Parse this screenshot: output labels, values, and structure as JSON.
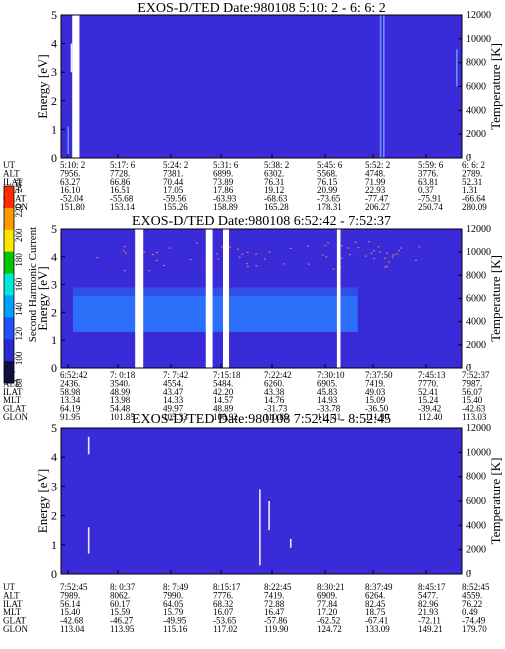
{
  "panels": [
    {
      "title": "EXOS-D/TED   Date:980108  5:10: 2 - 6: 6: 2",
      "ut": [
        "5:10: 2",
        "5:17: 6",
        "5:24: 2",
        "5:31: 6",
        "5:38: 2",
        "5:45: 6",
        "5:52: 2",
        "5:59: 6",
        "6: 6: 2"
      ],
      "alt": [
        "7956.",
        "7728.",
        "7381.",
        "6899.",
        "6302.",
        "5568.",
        "4748.",
        "3776.",
        "2789."
      ],
      "ilat": [
        "63.27",
        "66.86",
        "70.44",
        "73.89",
        "76.31",
        "76.15",
        "71.99",
        "63.81",
        "52.31"
      ],
      "mlt": [
        "16.10",
        "16.51",
        "17.05",
        "17.86",
        "19.12",
        "20.99",
        "22.93",
        "0.37",
        "1.31"
      ],
      "glat": [
        "-52.04",
        "-55.68",
        "-59.56",
        "-63.93",
        "-68.63",
        "-73.65",
        "-77.47",
        "-75.91",
        "-66.64"
      ],
      "glon": [
        "151.80",
        "153.14",
        "155.26",
        "158.89",
        "165.28",
        "178.31",
        "206.27",
        "250.74",
        "280.09"
      ]
    },
    {
      "title": "EXOS-D/TED   Date:980108  6:52:42 - 7:52:37",
      "ut": [
        "6:52:42",
        "7: 0:18",
        "7: 7:42",
        "7:15:18",
        "7:22:42",
        "7:30:10",
        "7:37:50",
        "7:45:13",
        "7:52:37"
      ],
      "alt": [
        "2436.",
        "3540.",
        "4554.",
        "5484.",
        "6260.",
        "6905.",
        "7419.",
        "7770.",
        "7987."
      ],
      "ilat": [
        "58.98",
        "48.99",
        "43.47",
        "42.20",
        "43.38",
        "45.83",
        "49.03",
        "52.41",
        "56.07"
      ],
      "mlt": [
        "13.34",
        "13.98",
        "14.33",
        "14.57",
        "14.76",
        "14.93",
        "15.09",
        "15.24",
        "15.40"
      ],
      "glat": [
        "64.19",
        "54.48",
        "49.97",
        "48.89",
        "-31.73",
        "-33.78",
        "-36.50",
        "-39.42",
        "-42.63"
      ],
      "glon": [
        "91.95",
        "101.85",
        "105.33",
        "106.92",
        "110.85",
        "111.41",
        "111.90",
        "112.40",
        "113.03"
      ]
    },
    {
      "title": "EXOS-D/TED   Date:980108  7:52:45 - 8:52:45",
      "ut": [
        "7:52:45",
        "8: 0:37",
        "8: 7:49",
        "8:15:17",
        "8:22:45",
        "8:30:21",
        "8:37:49",
        "8:45:17",
        "8:52:45"
      ],
      "alt": [
        "7989.",
        "8062.",
        "7990.",
        "7776.",
        "7419.",
        "6909.",
        "6264.",
        "5477.",
        "4559."
      ],
      "ilat": [
        "56.14",
        "60.17",
        "64.05",
        "68.32",
        "72.88",
        "77.84",
        "82.45",
        "82.96",
        "76.22"
      ],
      "mlt": [
        "15.40",
        "15.59",
        "15.79",
        "16.07",
        "16.47",
        "17.20",
        "18.75",
        "21.93",
        "0.49"
      ],
      "glat": [
        "-42.68",
        "-46.27",
        "-49.95",
        "-53.65",
        "-57.86",
        "-62.52",
        "-67.41",
        "-72.11",
        "-74.49"
      ],
      "glon": [
        "113.04",
        "113.95",
        "115.16",
        "117.02",
        "119.90",
        "124.72",
        "133.09",
        "149.21",
        "179.70"
      ]
    }
  ],
  "row_labels": [
    "UT",
    "ALT",
    "ILAT",
    "MLT",
    "GLAT",
    "GLON"
  ],
  "colorbar": {
    "label": "Second Harmonic Current",
    "ticks": [
      "80",
      "100",
      "120",
      "140",
      "160",
      "180",
      "200",
      "220",
      "240"
    ]
  },
  "chart_data": [
    {
      "type": "heatmap",
      "title": "EXOS-D/TED   Date:980108  5:10: 2 - 6: 6: 2",
      "xlabel": "UT",
      "ylabel": "Energy [eV]",
      "y2label": "Temperature [K]",
      "ylim": [
        0,
        5
      ],
      "y2lim": [
        0,
        12000
      ],
      "yticks": [
        "0",
        "1",
        "2",
        "3",
        "4",
        "5"
      ],
      "y2ticks": [
        "0",
        "2000",
        "4000",
        "6000",
        "8000",
        "10000",
        "12000"
      ],
      "x": [
        "5:10: 2",
        "5:17: 6",
        "5:24: 2",
        "5:31: 6",
        "5:38: 2",
        "5:45: 6",
        "5:52: 2",
        "5:59: 6",
        "6: 6: 2"
      ],
      "colorbar_range": [
        80,
        240
      ],
      "gaps": [
        [
          0.028,
          0.046
        ]
      ],
      "streaks": [
        {
          "x": 0.016,
          "ylim": [
            0.0,
            1.1
          ],
          "value": 150
        },
        {
          "x": 0.024,
          "ylim": [
            3.0,
            4.0
          ],
          "value": 200
        },
        {
          "x": 0.795,
          "ylim": [
            0.0,
            5.0
          ],
          "value": 140
        },
        {
          "x": 0.803,
          "ylim": [
            0.0,
            5.0
          ],
          "value": 140
        },
        {
          "x": 0.985,
          "ylim": [
            2.5,
            3.8
          ],
          "value": 150
        }
      ]
    },
    {
      "type": "heatmap",
      "title": "EXOS-D/TED   Date:980108  6:52:42 - 7:52:37",
      "xlabel": "UT",
      "ylabel": "Energy [eV]",
      "y2label": "Temperature [K]",
      "ylim": [
        0,
        5
      ],
      "y2lim": [
        0,
        12000
      ],
      "yticks": [
        "0",
        "1",
        "2",
        "3",
        "4",
        "5"
      ],
      "y2ticks": [
        "0",
        "2000",
        "4000",
        "6000",
        "8000",
        "10000",
        "12000"
      ],
      "x": [
        "6:52:42",
        "7: 0:18",
        "7: 7:42",
        "7:15:18",
        "7:22:42",
        "7:30:10",
        "7:37:50",
        "7:45:13",
        "7:52:37"
      ],
      "colorbar_range": [
        80,
        240
      ],
      "band": {
        "ylim": [
          1.3,
          2.6
        ],
        "xlim": [
          0.03,
          0.74
        ],
        "value": 145
      },
      "gaps": [
        [
          0.185,
          0.205
        ],
        [
          0.361,
          0.378
        ],
        [
          0.404,
          0.419
        ],
        [
          0.688,
          0.697
        ]
      ],
      "dots": {
        "ylim": [
          3.5,
          4.6
        ],
        "xlim": [
          0.06,
          0.9
        ],
        "value": 220
      }
    },
    {
      "type": "heatmap",
      "title": "EXOS-D/TED   Date:980108  7:52:45 - 8:52:45",
      "xlabel": "UT",
      "ylabel": "Energy [eV]",
      "y2label": "Temperature [K]",
      "ylim": [
        0,
        5
      ],
      "y2lim": [
        0,
        12000
      ],
      "yticks": [
        "0",
        "1",
        "2",
        "3",
        "4",
        "5"
      ],
      "y2ticks": [
        "0",
        "2000",
        "4000",
        "6000",
        "8000",
        "10000",
        "12000"
      ],
      "x": [
        "7:52:45",
        "8: 0:37",
        "8: 7:49",
        "8:15:17",
        "8:22:45",
        "8:30:21",
        "8:37:49",
        "8:45:17",
        "8:52:45"
      ],
      "colorbar_range": [
        80,
        240
      ],
      "streaks": [
        {
          "x": 0.067,
          "ylim": [
            4.1,
            4.7
          ],
          "value": 220
        },
        {
          "x": 0.067,
          "ylim": [
            0.7,
            1.6
          ],
          "value": 220
        },
        {
          "x": 0.494,
          "ylim": [
            0.3,
            2.9
          ],
          "value": 220
        },
        {
          "x": 0.517,
          "ylim": [
            1.5,
            2.5
          ],
          "value": 220
        },
        {
          "x": 0.571,
          "ylim": [
            0.9,
            1.2
          ],
          "value": 220
        }
      ]
    }
  ],
  "colors": {
    "background": "#3a2bd8",
    "band": "#2a7bff",
    "gap": "#ffffff",
    "streak": "#e8e8ff",
    "dots": "#ff7a5a"
  }
}
